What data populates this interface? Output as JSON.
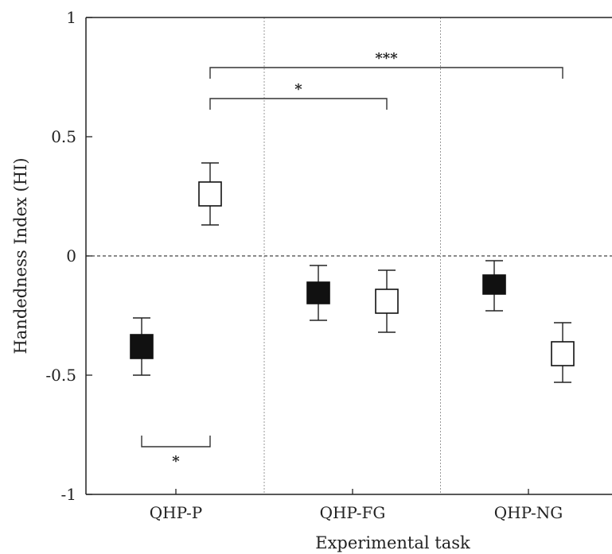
{
  "chart_data": {
    "type": "scatter",
    "title": "",
    "xlabel": "Experimental task",
    "ylabel": "Handedness Index (HI)",
    "ylim": [
      -1,
      1
    ],
    "yticks": [
      {
        "value": 1,
        "label": "1"
      },
      {
        "value": 0.5,
        "label": "0.5"
      },
      {
        "value": 0,
        "label": "0"
      },
      {
        "value": -0.5,
        "label": "-0.5"
      },
      {
        "value": -1,
        "label": "-1"
      }
    ],
    "categories": [
      "QHP-P",
      "QHP-FG",
      "QHP-NG"
    ],
    "reference_line": {
      "y": 0,
      "style": "dashed"
    },
    "category_separators": "dotted",
    "series": [
      {
        "marker": "filled-square",
        "color": "#111111",
        "values": [
          {
            "mean": -0.38,
            "box_low": -0.43,
            "box_high": -0.33,
            "err_low": -0.5,
            "err_high": -0.26
          },
          {
            "mean": -0.15,
            "box_low": -0.2,
            "box_high": -0.11,
            "err_low": -0.27,
            "err_high": -0.04
          },
          {
            "mean": -0.12,
            "box_low": -0.16,
            "box_high": -0.08,
            "err_low": -0.23,
            "err_high": -0.02
          }
        ]
      },
      {
        "marker": "open-square",
        "color": "#ffffff",
        "values": [
          {
            "mean": 0.26,
            "box_low": 0.21,
            "box_high": 0.31,
            "err_low": 0.13,
            "err_high": 0.39
          },
          {
            "mean": -0.19,
            "box_low": -0.24,
            "box_high": -0.14,
            "err_low": -0.32,
            "err_high": -0.06
          },
          {
            "mean": -0.41,
            "box_low": -0.46,
            "box_high": -0.36,
            "err_low": -0.53,
            "err_high": -0.28
          }
        ]
      }
    ],
    "significance": [
      {
        "from": {
          "category": 0,
          "series": 1
        },
        "to": {
          "category": 2,
          "series": 1
        },
        "label": "***",
        "direction": "down",
        "y": 0.79
      },
      {
        "from": {
          "category": 0,
          "series": 1
        },
        "to": {
          "category": 1,
          "series": 1
        },
        "label": "*",
        "direction": "down",
        "y": 0.66
      },
      {
        "from": {
          "category": 0,
          "series": 0
        },
        "to": {
          "category": 0,
          "series": 1
        },
        "label": "*",
        "direction": "up",
        "y": -0.8
      }
    ],
    "grid": false,
    "legend": "none"
  }
}
